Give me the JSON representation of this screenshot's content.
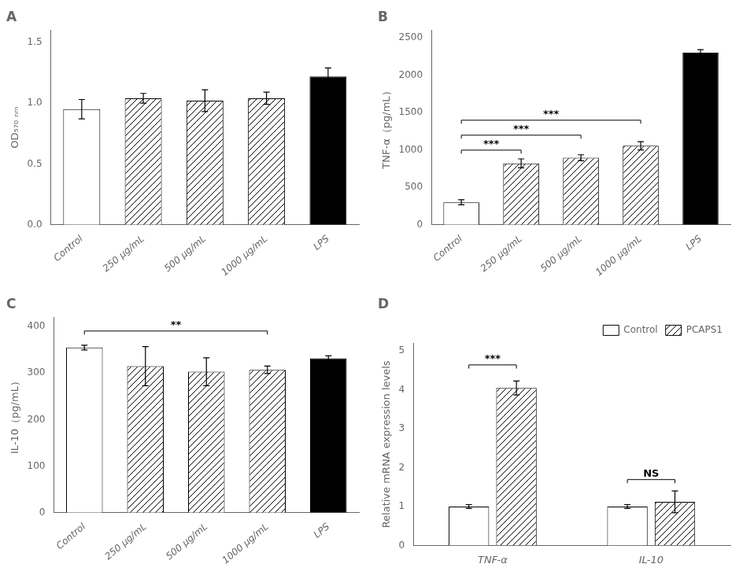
{
  "chart_data": [
    {
      "type": "bar",
      "title": "A",
      "categories": [
        "Control",
        "250 μg/mL",
        "500 μg/mL",
        "1000 μg/mL",
        "LPS"
      ],
      "values": [
        0.95,
        1.04,
        1.02,
        1.04,
        1.22
      ],
      "errors": [
        0.08,
        0.04,
        0.09,
        0.05,
        0.07
      ],
      "colors": [
        "white",
        "hatch",
        "hatch",
        "hatch",
        "black"
      ],
      "y_label": "OD₅₇₀ ₙₘ",
      "ylim": [
        0,
        1.6
      ],
      "yticks": [
        {
          "value": 0,
          "label": "0.0"
        },
        {
          "value": 0.5,
          "label": "0.5"
        },
        {
          "value": 1,
          "label": "1.0"
        },
        {
          "value": 1.5,
          "label": "1.5"
        }
      ],
      "grid": false
    },
    {
      "type": "bar",
      "title": "B",
      "categories": [
        "Control",
        "250 μg/mL",
        "500 μg/mL",
        "1000 μg/mL",
        "LPS"
      ],
      "values": [
        300,
        820,
        895,
        1055,
        2300
      ],
      "errors": [
        35,
        60,
        40,
        55,
        40
      ],
      "colors": [
        "white",
        "hatch",
        "hatch",
        "hatch",
        "black"
      ],
      "y_label": "TNF-α（pg/mL）",
      "ylim": [
        0,
        2600
      ],
      "yticks": [
        0,
        500,
        1000,
        1500,
        2000,
        2500
      ],
      "grid": false,
      "annotations": [
        {
          "text": "***",
          "x": [
            "Control",
            "250 μg/mL"
          ],
          "y": 950
        },
        {
          "text": "***",
          "x": [
            "Control",
            "500 μg/mL"
          ],
          "y": 1150
        },
        {
          "text": "***",
          "x": [
            "Control",
            "1000 μg/mL"
          ],
          "y": 1350
        }
      ]
    },
    {
      "type": "bar",
      "title": "C",
      "categories": [
        "Control",
        "250 μg/mL",
        "500 μg/mL",
        "1000 μg/mL",
        "LPS"
      ],
      "values": [
        355,
        315,
        303,
        307,
        332
      ],
      "errors": [
        5,
        42,
        30,
        8,
        5
      ],
      "colors": [
        "white",
        "hatch",
        "hatch",
        "hatch",
        "black"
      ],
      "y_label": "IL-10（pg/mL）",
      "ylim": [
        0,
        420
      ],
      "yticks": [
        0,
        100,
        200,
        300,
        400
      ],
      "grid": false,
      "annotations": [
        {
          "text": "**",
          "x": [
            "Control",
            "1000 μg/mL"
          ],
          "y": 383
        }
      ]
    },
    {
      "type": "bar",
      "title": "D",
      "categories": [
        "TNF-α",
        "IL-10"
      ],
      "series": [
        {
          "name": "Control",
          "color": "white",
          "values": [
            1.0,
            1.0
          ],
          "errors": [
            0.05,
            0.05
          ]
        },
        {
          "name": "PCAPS1",
          "color": "hatch",
          "values": [
            4.05,
            1.12
          ],
          "errors": [
            0.18,
            0.28
          ]
        }
      ],
      "y_label": "Relative mRNA expression levels",
      "ylim": [
        0,
        5.2
      ],
      "yticks": [
        0,
        1,
        2,
        3,
        4,
        5
      ],
      "grid": false,
      "legend": "upper right",
      "annotations": [
        {
          "text": "***",
          "x": "TNF-α",
          "y": 4.55
        },
        {
          "text": "NS",
          "x": "IL-10",
          "y": 1.6
        }
      ]
    }
  ]
}
